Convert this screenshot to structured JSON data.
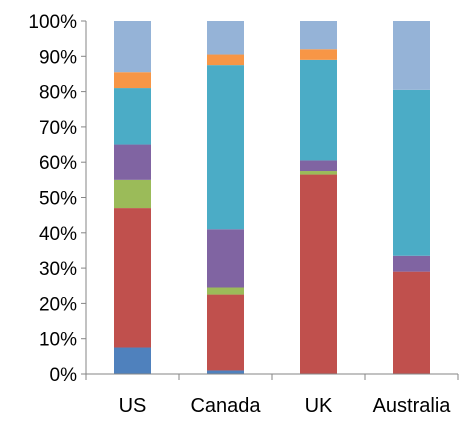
{
  "chart_data": {
    "type": "bar",
    "stacked": true,
    "normalized": true,
    "title": "",
    "xlabel": "",
    "ylabel": "",
    "ylim": [
      0,
      100
    ],
    "y_ticks": [
      "0%",
      "10%",
      "20%",
      "30%",
      "40%",
      "50%",
      "60%",
      "70%",
      "80%",
      "90%",
      "100%"
    ],
    "grid": false,
    "legend": "none",
    "categories": [
      "US",
      "Canada",
      "UK",
      "Australia"
    ],
    "series": [
      {
        "color": "#4F81BD",
        "values": [
          7.5,
          1.0,
          0.0,
          0.0
        ]
      },
      {
        "color": "#C0504D",
        "values": [
          39.5,
          21.5,
          56.5,
          29.0
        ]
      },
      {
        "color": "#9BBB59",
        "values": [
          8.0,
          2.0,
          1.0,
          0.0
        ]
      },
      {
        "color": "#8064A2",
        "values": [
          10.0,
          16.5,
          3.0,
          4.5
        ]
      },
      {
        "color": "#4BACC6",
        "values": [
          16.0,
          46.5,
          28.5,
          47.0
        ]
      },
      {
        "color": "#F79646",
        "values": [
          4.5,
          3.0,
          3.0,
          0.0
        ]
      },
      {
        "color": "#95B3D7",
        "values": [
          14.5,
          9.5,
          8.0,
          19.5
        ]
      }
    ]
  }
}
